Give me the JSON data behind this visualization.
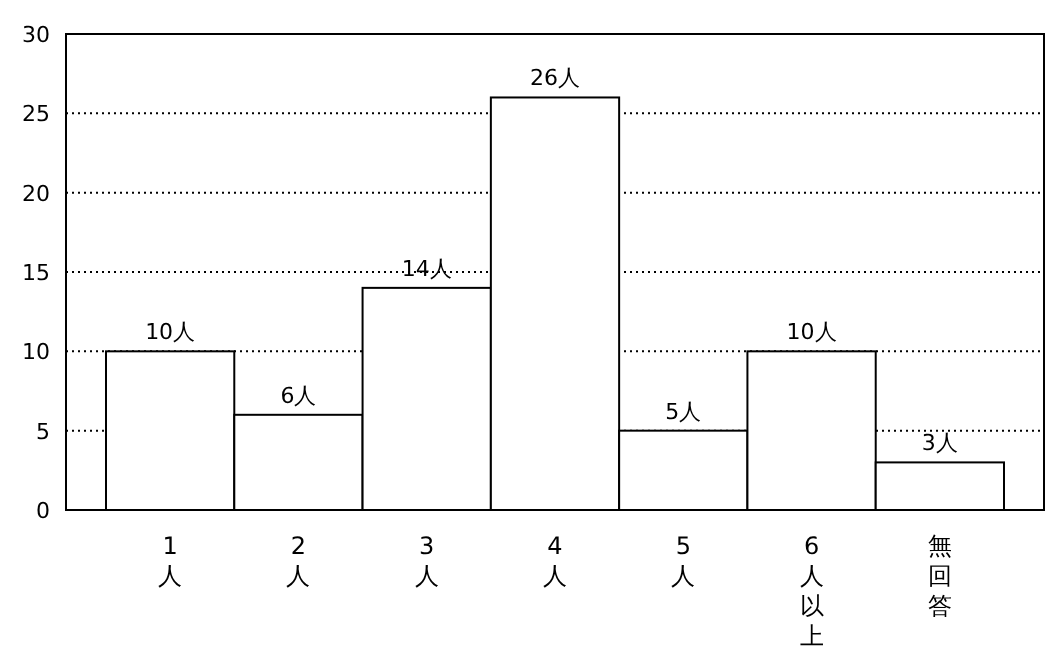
{
  "chart_data": {
    "type": "bar",
    "categories": [
      "1人",
      "2人",
      "3人",
      "4人",
      "5人",
      "6人以上",
      "無回答"
    ],
    "values": [
      10,
      6,
      14,
      26,
      5,
      10,
      3
    ],
    "value_labels": [
      "10人",
      "6人",
      "14人",
      "26人",
      "5人",
      "10人",
      "3人"
    ],
    "color": "#ffffff",
    "ylim": [
      0,
      30
    ],
    "yticks": [
      0,
      5,
      10,
      15,
      20,
      25,
      30
    ],
    "grid": "y"
  }
}
